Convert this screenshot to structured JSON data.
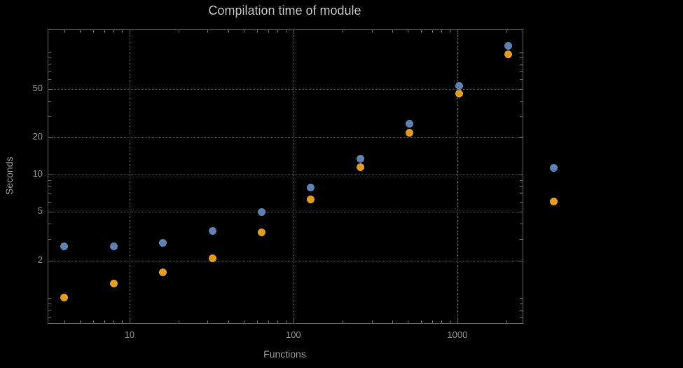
{
  "chart_data": {
    "type": "scatter",
    "title": "Compilation time of module",
    "xlabel": "Functions",
    "ylabel": "Seconds",
    "xscale": "log",
    "yscale": "log",
    "xlim": [
      3.2,
      2500
    ],
    "ylim": [
      0.62,
      150
    ],
    "grid": true,
    "legend_position": "right-of-frame",
    "x": [
      4,
      8,
      16,
      32,
      64,
      128,
      256,
      512,
      1024,
      2048
    ],
    "series": [
      {
        "name": "",
        "color": "#5e81b5",
        "values": [
          2.6,
          2.6,
          2.8,
          3.5,
          5.0,
          7.9,
          13.5,
          26,
          53,
          112
        ]
      },
      {
        "name": "",
        "color": "#e19c24",
        "values": [
          1.0,
          1.3,
          1.6,
          2.1,
          3.4,
          6.3,
          11.5,
          22,
          46,
          95
        ]
      }
    ],
    "x_ticks": {
      "values": [
        10,
        100,
        1000
      ],
      "labels": [
        "10",
        "100",
        "1000"
      ]
    },
    "y_ticks": {
      "values": [
        2,
        5,
        10,
        20,
        50
      ],
      "labels": [
        "2",
        "5",
        "10",
        "20",
        "50"
      ]
    }
  },
  "colors": {
    "background": "#000000",
    "frame": "#646464",
    "grid": "#585858",
    "title": "#bdbdbd",
    "axis_label": "#979797",
    "tick_label": "#8f8f8f",
    "series1": "#5e81b5",
    "series2": "#e19c24"
  }
}
